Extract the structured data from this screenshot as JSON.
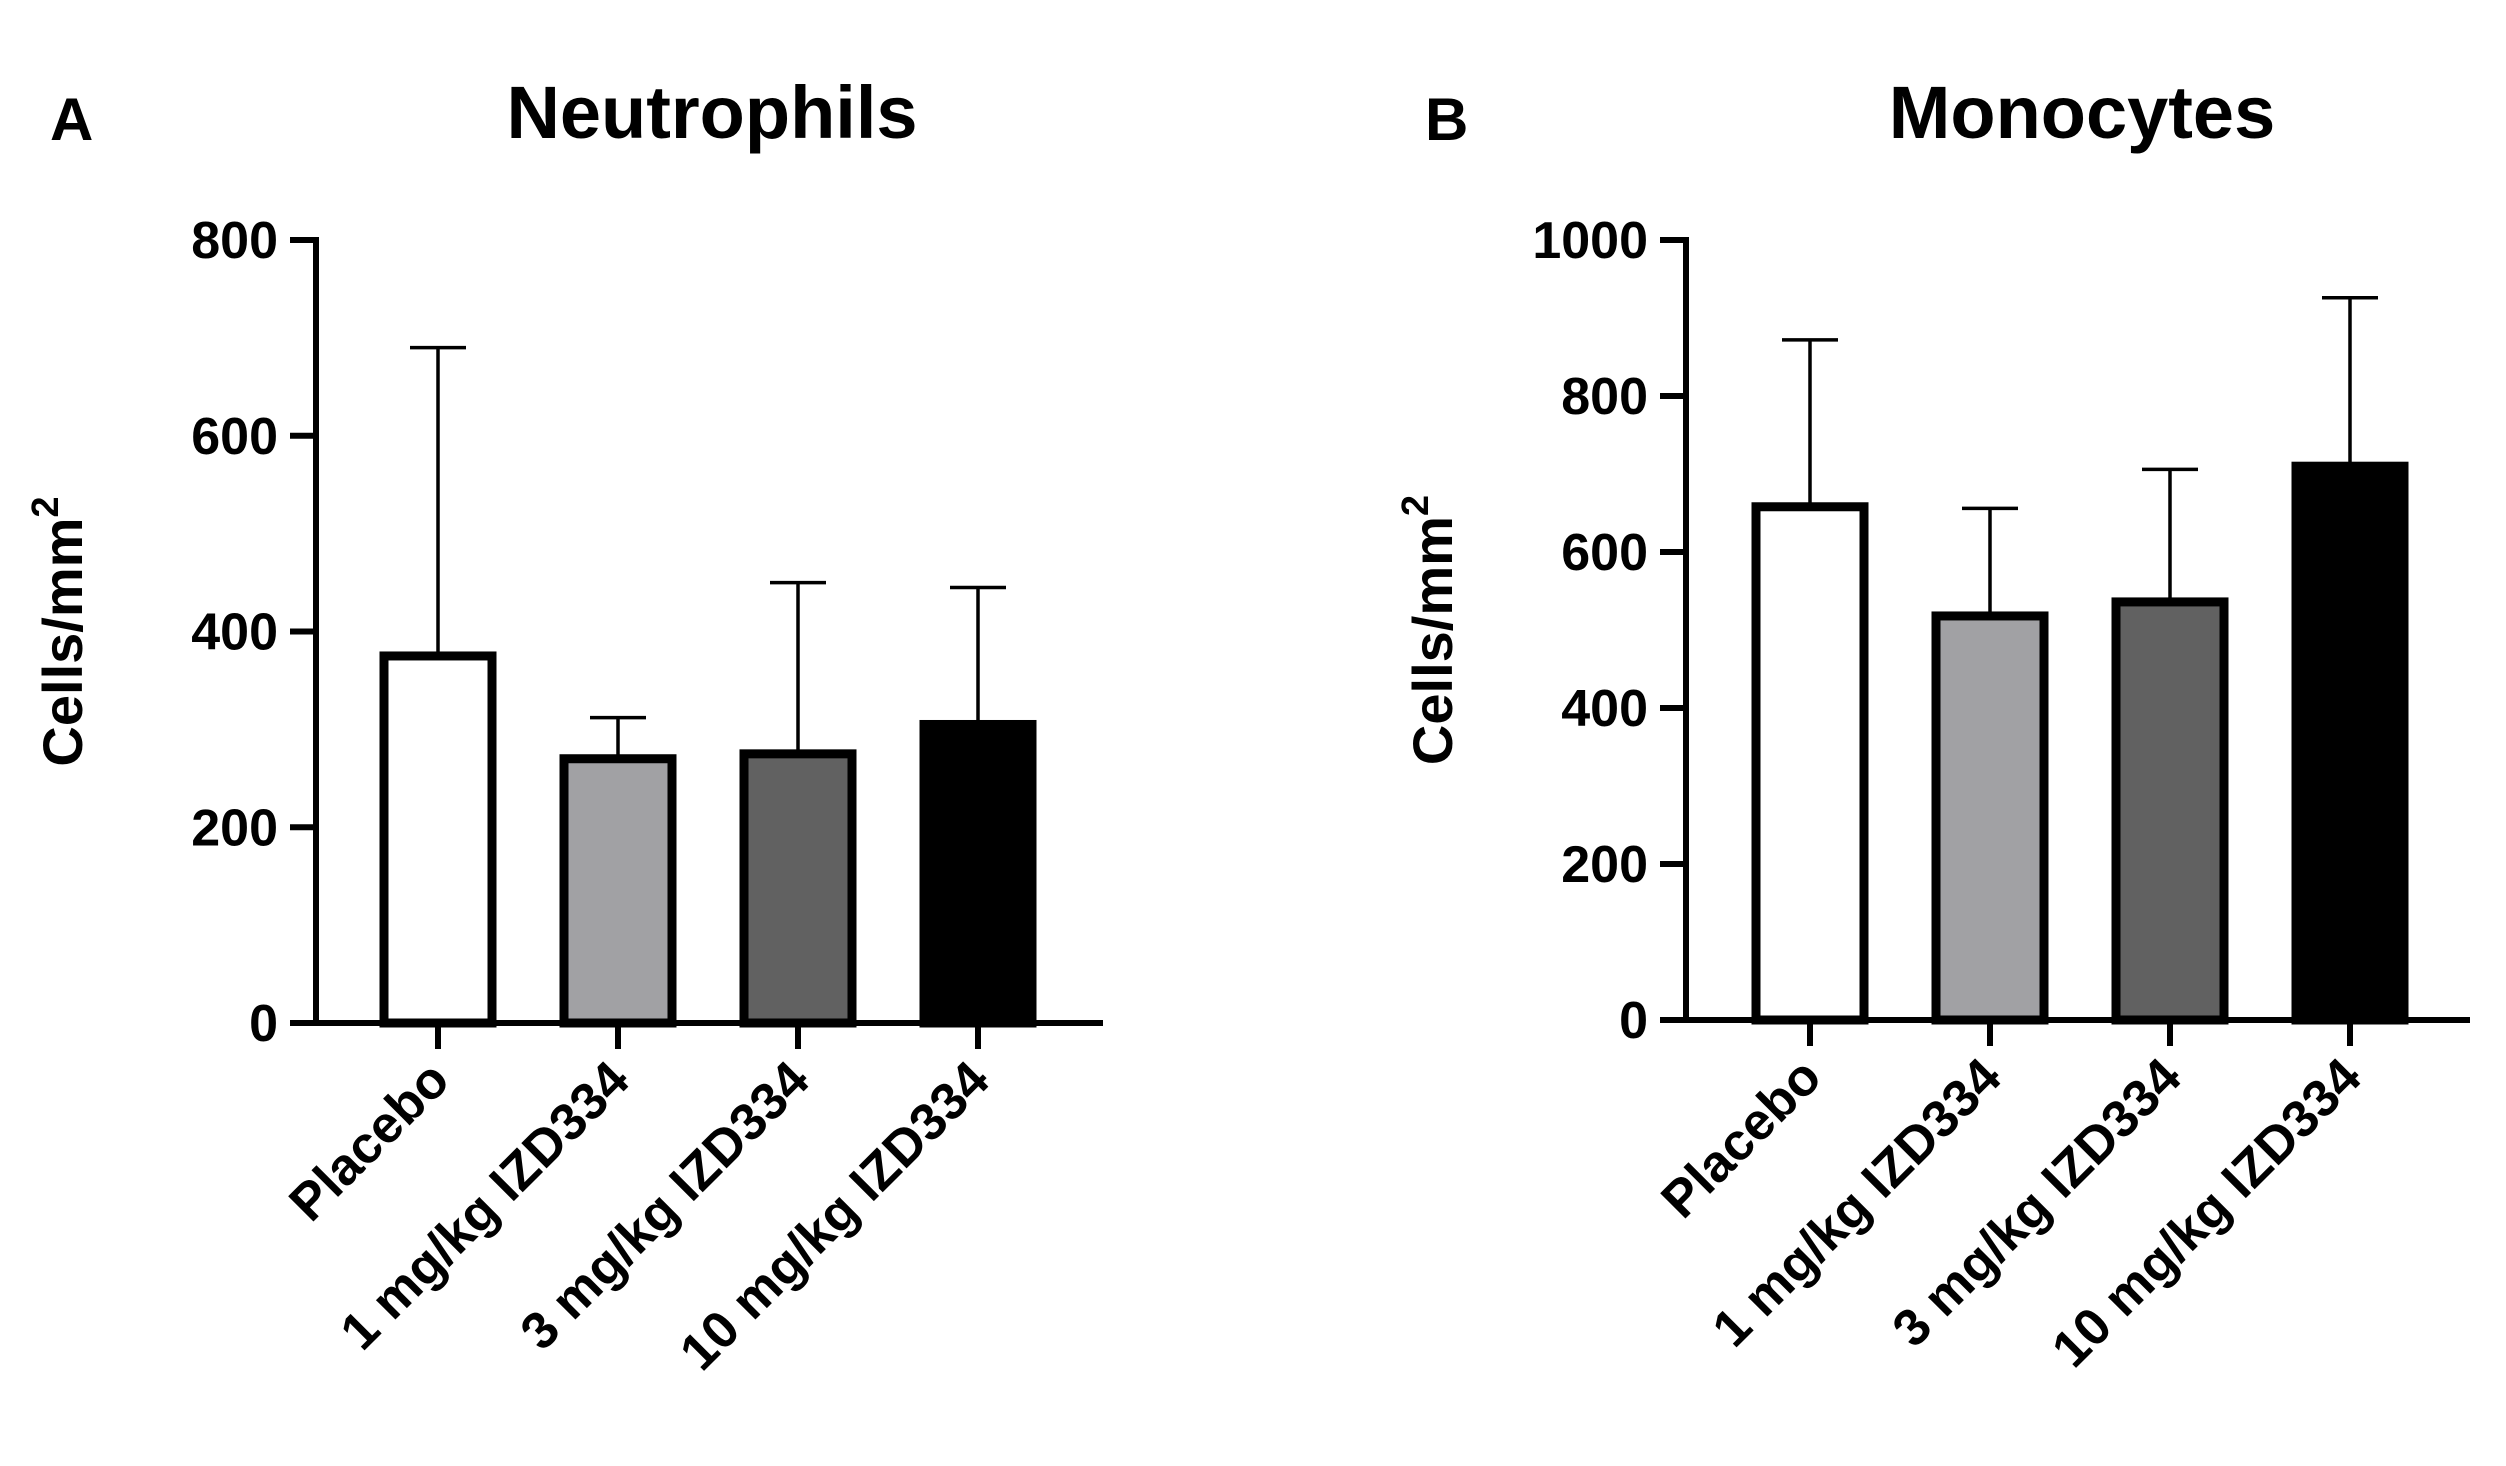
{
  "panels": [
    {
      "letter": "A",
      "chart_data": {
        "type": "bar",
        "title": "Neutrophils",
        "xlabel": "",
        "ylabel": "Cells/mm",
        "ylabel_superscript": "2",
        "categories": [
          "Placebo",
          "1 mg/kg IZD334",
          "3 mg/kg IZD334",
          "10 mg/kg IZD334"
        ],
        "values": [
          375,
          270,
          275,
          305
        ],
        "error_upper": [
          690,
          312,
          450,
          445
        ],
        "bar_colors": [
          "#ffffff",
          "#a1a1a4",
          "#616161",
          "#000000"
        ],
        "ylim": [
          0,
          800
        ],
        "yticks": [
          0,
          200,
          400,
          600,
          800
        ],
        "grid": false
      }
    },
    {
      "letter": "B",
      "chart_data": {
        "type": "bar",
        "title": "Monocytes",
        "xlabel": "",
        "ylabel": "Cells/mm",
        "ylabel_superscript": "2",
        "categories": [
          "Placebo",
          "1 mg/kg IZD334",
          "3 mg/kg IZD334",
          "10 mg/kg IZD334"
        ],
        "values": [
          658,
          518,
          536,
          710
        ],
        "error_upper": [
          872,
          656,
          706,
          926
        ],
        "bar_colors": [
          "#ffffff",
          "#a1a1a4",
          "#616161",
          "#000000"
        ],
        "ylim": [
          0,
          1000
        ],
        "yticks": [
          0,
          200,
          400,
          600,
          800,
          1000
        ],
        "grid": false
      }
    }
  ]
}
